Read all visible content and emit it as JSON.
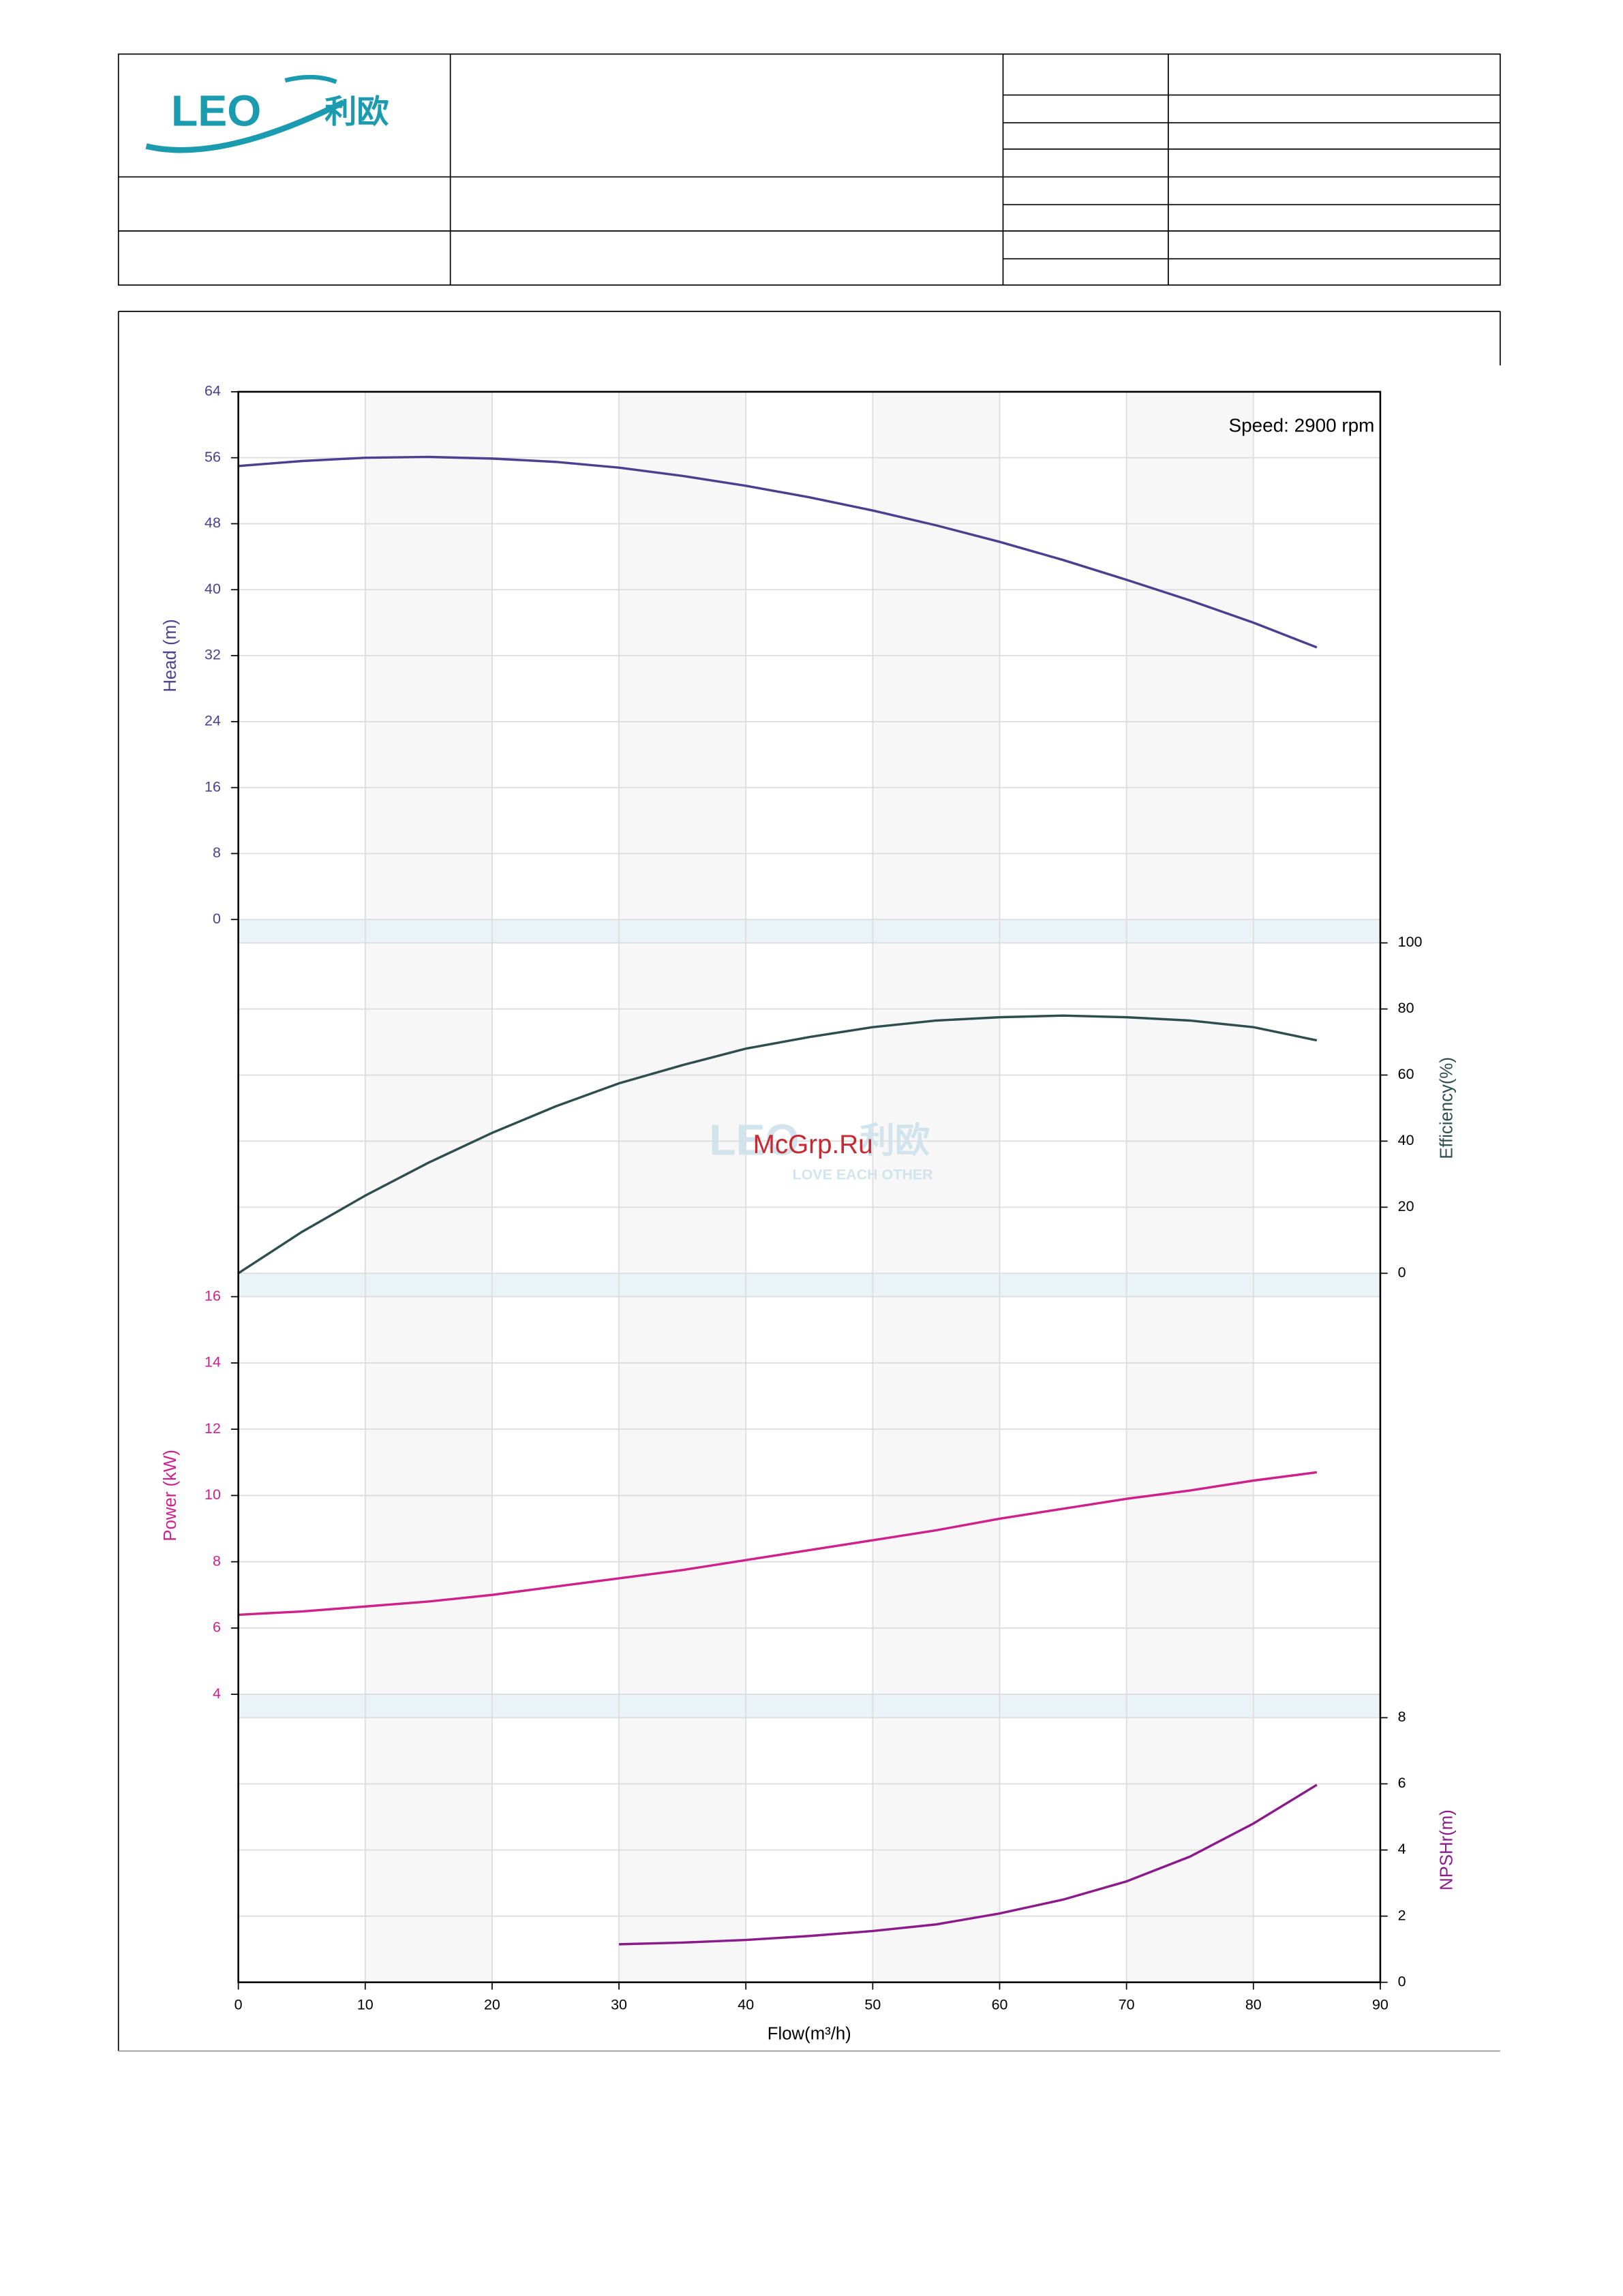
{
  "header": {
    "logo": "LEO",
    "logo_cn": "利欧"
  },
  "watermark": {
    "site": "McGrp.Ru",
    "brand": "LEO",
    "brand_cn": "利欧",
    "slogan": "LOVE EACH OTHER"
  },
  "chart_data": [
    {
      "type": "line",
      "y_label": "Head (m)",
      "annotation": "Speed: 2900 rpm",
      "xlim": [
        0,
        90
      ],
      "ylim": [
        0,
        64
      ],
      "yticks": [
        0,
        8,
        16,
        24,
        32,
        40,
        48,
        56,
        64
      ],
      "axis_side": "left",
      "x": [
        0,
        5,
        10,
        15,
        20,
        25,
        30,
        35,
        40,
        45,
        50,
        55,
        60,
        65,
        70,
        75,
        80,
        85
      ],
      "series": [
        {
          "name": "Head",
          "color": "#4b3f8f",
          "values": [
            55,
            55.6,
            56,
            56.1,
            55.9,
            55.5,
            54.8,
            53.8,
            52.6,
            51.2,
            49.6,
            47.8,
            45.8,
            43.6,
            41.2,
            38.7,
            36,
            33
          ]
        }
      ]
    },
    {
      "type": "line",
      "y_label": "Efficiency(%)",
      "xlim": [
        0,
        90
      ],
      "ylim": [
        0,
        100
      ],
      "yticks": [
        0,
        20,
        40,
        60,
        80,
        100
      ],
      "axis_side": "right",
      "x": [
        0,
        5,
        10,
        15,
        20,
        25,
        30,
        35,
        40,
        45,
        50,
        55,
        60,
        65,
        70,
        75,
        80,
        85
      ],
      "series": [
        {
          "name": "Efficiency",
          "color": "#2e4e4e",
          "values": [
            0,
            12.5,
            23.5,
            33.5,
            42.5,
            50.5,
            57.5,
            63,
            68,
            71.5,
            74.5,
            76.5,
            77.5,
            78,
            77.5,
            76.5,
            74.5,
            70.5
          ]
        }
      ]
    },
    {
      "type": "line",
      "y_label": "Power (kW)",
      "xlim": [
        0,
        90
      ],
      "ylim": [
        4,
        16
      ],
      "yticks": [
        4,
        6,
        8,
        10,
        12,
        14,
        16
      ],
      "axis_side": "left",
      "x": [
        0,
        5,
        10,
        15,
        20,
        25,
        30,
        35,
        40,
        45,
        50,
        55,
        60,
        65,
        70,
        75,
        80,
        85
      ],
      "series": [
        {
          "name": "Power",
          "color": "#d0208c",
          "values": [
            6.4,
            6.5,
            6.65,
            6.8,
            7.0,
            7.25,
            7.5,
            7.75,
            8.05,
            8.35,
            8.65,
            8.95,
            9.3,
            9.6,
            9.9,
            10.15,
            10.45,
            10.7
          ]
        }
      ]
    },
    {
      "type": "line",
      "y_label": "NPSHr(m)",
      "x_label": "Flow(m³/h)",
      "xlim": [
        0,
        90
      ],
      "xticks": [
        0,
        10,
        20,
        30,
        40,
        50,
        60,
        70,
        80,
        90
      ],
      "ylim": [
        0,
        8
      ],
      "yticks": [
        0,
        2,
        4,
        6,
        8
      ],
      "axis_side": "right",
      "x": [
        0,
        5,
        10,
        15,
        20,
        25,
        30,
        35,
        40,
        45,
        50,
        55,
        60,
        65,
        70,
        75,
        80,
        85
      ],
      "series": [
        {
          "name": "NPSHr",
          "color": "#8b1a8b",
          "values": [
            null,
            null,
            null,
            null,
            null,
            null,
            1.15,
            1.2,
            1.28,
            1.4,
            1.55,
            1.75,
            2.08,
            2.5,
            3.05,
            3.8,
            4.8,
            5.97
          ]
        }
      ]
    }
  ]
}
